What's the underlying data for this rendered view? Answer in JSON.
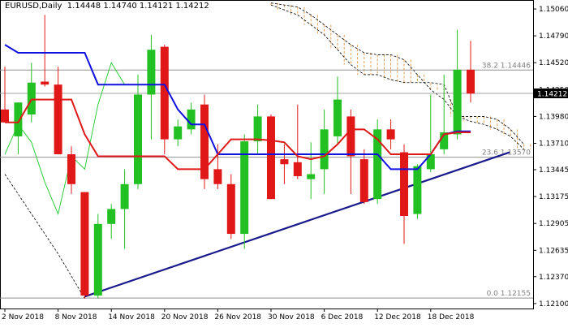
{
  "header": {
    "symbol": "EURUSD,Daily",
    "ohlc": "1.14448 1.14740 1.14121 1.14212"
  },
  "chart_data": {
    "type": "candlestick",
    "title": "EURUSD,Daily",
    "ylim": [
      1.1205,
      1.1515
    ],
    "y_ticks": [
      "1.15060",
      "1.14790",
      "1.14520",
      "1.14250",
      "1.13980",
      "1.13710",
      "1.13445",
      "1.13175",
      "1.12905",
      "1.12635",
      "1.12370",
      "1.12100"
    ],
    "x_labels": [
      {
        "label": "2 Nov 2018",
        "index": 0
      },
      {
        "label": "8 Nov 2018",
        "index": 4
      },
      {
        "label": "14 Nov 2018",
        "index": 8
      },
      {
        "label": "20 Nov 2018",
        "index": 12
      },
      {
        "label": "26 Nov 2018",
        "index": 16
      },
      {
        "label": "30 Nov 2018",
        "index": 20
      },
      {
        "label": "6 Dec 2018",
        "index": 24
      },
      {
        "label": "12 Dec 2018",
        "index": 28
      },
      {
        "label": "18 Dec 2018",
        "index": 32
      }
    ],
    "current_price": "1.14212",
    "candles": [
      {
        "o": 1.1405,
        "h": 1.1448,
        "l": 1.1392,
        "c": 1.1392
      },
      {
        "o": 1.1378,
        "h": 1.1412,
        "l": 1.136,
        "c": 1.1412
      },
      {
        "o": 1.14,
        "h": 1.1452,
        "l": 1.1392,
        "c": 1.1432
      },
      {
        "o": 1.1433,
        "h": 1.15,
        "l": 1.1428,
        "c": 1.143
      },
      {
        "o": 1.143,
        "h": 1.1448,
        "l": 1.136,
        "c": 1.136
      },
      {
        "o": 1.136,
        "h": 1.1368,
        "l": 1.132,
        "c": 1.133
      },
      {
        "o": 1.1322,
        "h": 1.1322,
        "l": 1.1215,
        "c": 1.1218
      },
      {
        "o": 1.1218,
        "h": 1.13,
        "l": 1.1215,
        "c": 1.129
      },
      {
        "o": 1.129,
        "h": 1.131,
        "l": 1.1275,
        "c": 1.1305
      },
      {
        "o": 1.1305,
        "h": 1.1345,
        "l": 1.1265,
        "c": 1.133
      },
      {
        "o": 1.133,
        "h": 1.144,
        "l": 1.1325,
        "c": 1.142
      },
      {
        "o": 1.142,
        "h": 1.148,
        "l": 1.1375,
        "c": 1.1465
      },
      {
        "o": 1.1468,
        "h": 1.147,
        "l": 1.136,
        "c": 1.1375
      },
      {
        "o": 1.1375,
        "h": 1.1395,
        "l": 1.1368,
        "c": 1.1388
      },
      {
        "o": 1.1385,
        "h": 1.1412,
        "l": 1.138,
        "c": 1.1405
      },
      {
        "o": 1.141,
        "h": 1.142,
        "l": 1.1325,
        "c": 1.1335
      },
      {
        "o": 1.1345,
        "h": 1.137,
        "l": 1.1325,
        "c": 1.133
      },
      {
        "o": 1.133,
        "h": 1.134,
        "l": 1.1275,
        "c": 1.128
      },
      {
        "o": 1.128,
        "h": 1.138,
        "l": 1.1265,
        "c": 1.1373
      },
      {
        "o": 1.1373,
        "h": 1.141,
        "l": 1.136,
        "c": 1.1398
      },
      {
        "o": 1.1398,
        "h": 1.14,
        "l": 1.1315,
        "c": 1.1315
      },
      {
        "o": 1.1355,
        "h": 1.137,
        "l": 1.133,
        "c": 1.135
      },
      {
        "o": 1.1352,
        "h": 1.141,
        "l": 1.1335,
        "c": 1.1338
      },
      {
        "o": 1.1335,
        "h": 1.1372,
        "l": 1.1315,
        "c": 1.134
      },
      {
        "o": 1.1345,
        "h": 1.1405,
        "l": 1.132,
        "c": 1.1385
      },
      {
        "o": 1.1378,
        "h": 1.1438,
        "l": 1.137,
        "c": 1.1415
      },
      {
        "o": 1.1398,
        "h": 1.1405,
        "l": 1.132,
        "c": 1.1358
      },
      {
        "o": 1.1355,
        "h": 1.1365,
        "l": 1.131,
        "c": 1.1312
      },
      {
        "o": 1.1315,
        "h": 1.1395,
        "l": 1.131,
        "c": 1.1385
      },
      {
        "o": 1.1385,
        "h": 1.1395,
        "l": 1.1365,
        "c": 1.1375
      },
      {
        "o": 1.1362,
        "h": 1.137,
        "l": 1.127,
        "c": 1.1298
      },
      {
        "o": 1.13,
        "h": 1.135,
        "l": 1.1295,
        "c": 1.1348
      },
      {
        "o": 1.1345,
        "h": 1.142,
        "l": 1.1342,
        "c": 1.136
      },
      {
        "o": 1.1365,
        "h": 1.144,
        "l": 1.136,
        "c": 1.1382
      },
      {
        "o": 1.138,
        "h": 1.1485,
        "l": 1.1375,
        "c": 1.1445
      },
      {
        "o": 1.1445,
        "h": 1.1474,
        "l": 1.1412,
        "c": 1.1421
      }
    ],
    "fibonacci_levels": [
      {
        "label": "38.2 1.14446",
        "value": 1.14446
      },
      {
        "label": "23.6 1.13570",
        "value": 1.1357
      },
      {
        "label": "0.0 1.12155",
        "value": 1.12155
      }
    ],
    "tenkan_line": [
      1.1392,
      1.1392,
      1.1415,
      1.1415,
      1.1415,
      1.1415,
      1.138,
      1.1358,
      1.1358,
      1.1358,
      1.1358,
      1.1358,
      1.1358,
      1.1345,
      1.1345,
      1.1345,
      1.136,
      1.1375,
      1.1375,
      1.1375,
      1.1374,
      1.1372,
      1.1358,
      1.1355,
      1.1358,
      1.137,
      1.1385,
      1.1385,
      1.1375,
      1.136,
      1.136,
      1.136,
      1.136,
      1.138,
      1.1382,
      1.1382
    ],
    "kijun_line": [
      1.147,
      1.1462,
      1.1462,
      1.1462,
      1.1462,
      1.1462,
      1.1462,
      1.143,
      1.143,
      1.143,
      1.143,
      1.143,
      1.143,
      1.1405,
      1.139,
      1.139,
      1.136,
      1.136,
      1.136,
      1.136,
      1.136,
      1.136,
      1.136,
      1.136,
      1.136,
      1.136,
      1.136,
      1.136,
      1.136,
      1.1345,
      1.1345,
      1.1345,
      1.136,
      1.138,
      1.1383,
      1.1383
    ],
    "chikou_span": [
      1.136,
      1.139,
      1.1372,
      1.1332,
      1.13,
      1.1358,
      1.1345,
      1.141,
      1.1452,
      1.143
    ],
    "cloud_upper": [
      1.1512,
      1.151,
      1.1508,
      1.15,
      1.149,
      1.148,
      1.147,
      1.1462,
      1.146,
      1.146,
      1.1455,
      1.144,
      1.1425,
      1.1415,
      1.1398,
      1.1398,
      1.1398,
      1.1395,
      1.1385,
      1.137
    ],
    "cloud_lower": [
      1.151,
      1.1505,
      1.15,
      1.149,
      1.148,
      1.1465,
      1.145,
      1.144,
      1.144,
      1.1435,
      1.1432,
      1.1432,
      1.1432,
      1.143,
      1.1398,
      1.1393,
      1.139,
      1.1385,
      1.1378,
      1.1365
    ]
  }
}
